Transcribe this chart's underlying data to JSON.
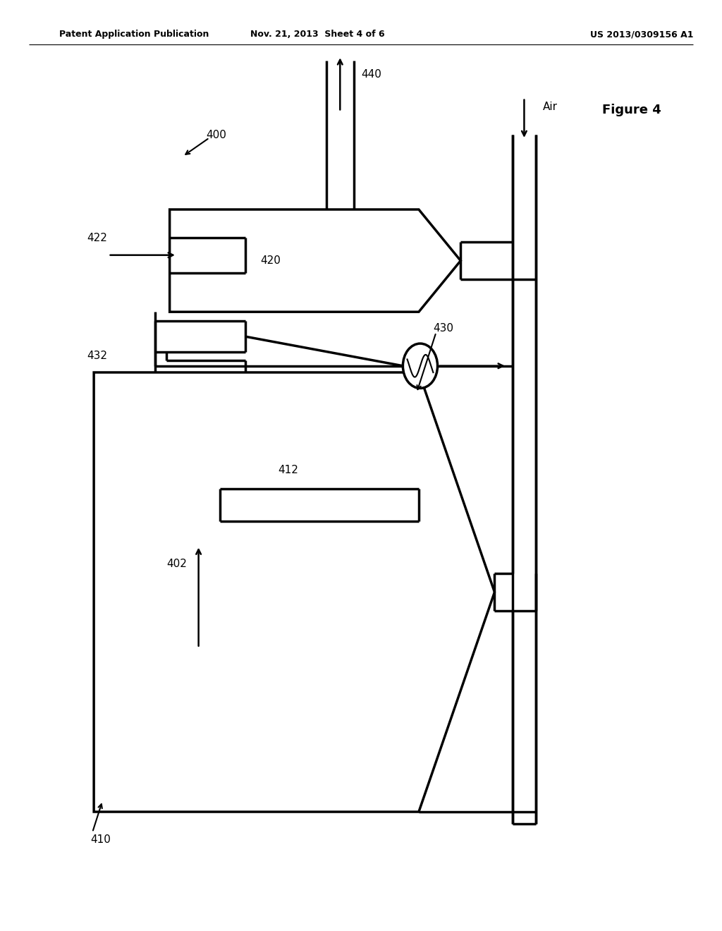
{
  "bg_color": "#ffffff",
  "lc": "#000000",
  "lw": 2.5,
  "thin_lw": 1.0,
  "header_left": "Patent Application Publication",
  "header_mid": "Nov. 21, 2013  Sheet 4 of 6",
  "header_right": "US 2013/0309156 A1",
  "figure_label": "Figure 4",
  "fs": 11,
  "header_fs": 9
}
